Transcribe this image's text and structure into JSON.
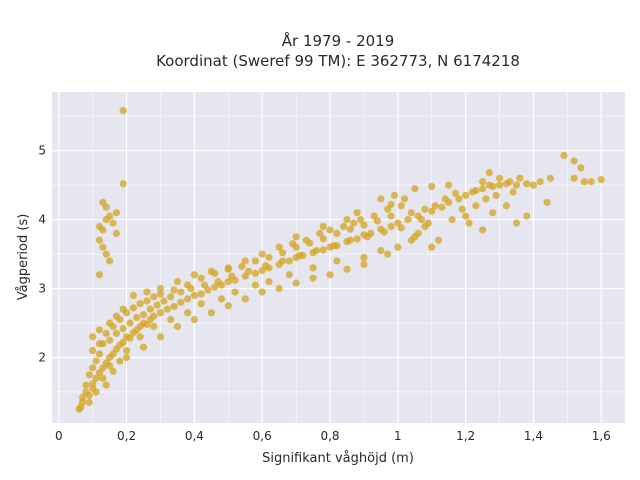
{
  "chart_data": {
    "type": "scatter",
    "title_line1": "År 1979 - 2019",
    "title_line2": "Koordinat (Sweref 99 TM): E 362773, N 6174218",
    "xlabel": "Signifikant våghöjd (m)",
    "ylabel": "Vågperiod (s)",
    "xlim": [
      -0.02,
      1.67
    ],
    "ylim": [
      1.05,
      5.85
    ],
    "x_ticks": [
      "0",
      "0,2",
      "0,4",
      "0,6",
      "0,8",
      "1",
      "1,2",
      "1,4",
      "1,6"
    ],
    "x_tick_values": [
      0,
      0.2,
      0.4,
      0.6,
      0.8,
      1.0,
      1.2,
      1.4,
      1.6
    ],
    "y_ticks": [
      "2",
      "3",
      "4",
      "5"
    ],
    "y_tick_values": [
      2,
      3,
      4,
      5
    ],
    "grid": true,
    "colors": {
      "marker": "#d4a31e",
      "plot_bg": "#e5e6ef",
      "grid": "#ffffff"
    },
    "series": [
      {
        "points": [
          [
            0.06,
            1.25
          ],
          [
            0.065,
            1.28
          ],
          [
            0.07,
            1.42
          ],
          [
            0.08,
            1.5
          ],
          [
            0.09,
            1.35
          ],
          [
            0.1,
            1.55
          ],
          [
            0.1,
            1.62
          ],
          [
            0.11,
            1.7
          ],
          [
            0.12,
            1.78
          ],
          [
            0.13,
            1.85
          ],
          [
            0.13,
            1.7
          ],
          [
            0.14,
            1.92
          ],
          [
            0.15,
            2.0
          ],
          [
            0.15,
            1.88
          ],
          [
            0.16,
            2.05
          ],
          [
            0.17,
            2.12
          ],
          [
            0.18,
            2.18
          ],
          [
            0.19,
            2.22
          ],
          [
            0.2,
            2.3
          ],
          [
            0.21,
            2.28
          ],
          [
            0.22,
            2.36
          ],
          [
            0.23,
            2.4
          ],
          [
            0.24,
            2.45
          ],
          [
            0.25,
            2.5
          ],
          [
            0.26,
            2.48
          ],
          [
            0.27,
            2.55
          ],
          [
            0.28,
            2.6
          ],
          [
            0.3,
            2.65
          ],
          [
            0.32,
            2.7
          ],
          [
            0.34,
            2.74
          ],
          [
            0.36,
            2.8
          ],
          [
            0.38,
            2.85
          ],
          [
            0.4,
            2.9
          ],
          [
            0.42,
            2.92
          ],
          [
            0.44,
            2.98
          ],
          [
            0.46,
            3.02
          ],
          [
            0.48,
            3.05
          ],
          [
            0.5,
            3.1
          ],
          [
            0.52,
            3.12
          ],
          [
            0.55,
            3.18
          ],
          [
            0.58,
            3.22
          ],
          [
            0.6,
            3.26
          ],
          [
            0.62,
            3.3
          ],
          [
            0.65,
            3.35
          ],
          [
            0.68,
            3.4
          ],
          [
            0.7,
            3.45
          ],
          [
            0.72,
            3.48
          ],
          [
            0.75,
            3.52
          ],
          [
            0.78,
            3.56
          ],
          [
            0.8,
            3.6
          ],
          [
            0.82,
            3.62
          ],
          [
            0.85,
            3.68
          ],
          [
            0.88,
            3.72
          ],
          [
            0.9,
            3.78
          ],
          [
            0.92,
            3.8
          ],
          [
            0.95,
            3.86
          ],
          [
            0.98,
            3.9
          ],
          [
            1.0,
            3.95
          ],
          [
            1.03,
            4.0
          ],
          [
            1.06,
            4.05
          ],
          [
            1.1,
            4.12
          ],
          [
            1.13,
            4.18
          ],
          [
            1.15,
            4.25
          ],
          [
            1.18,
            4.3
          ],
          [
            1.2,
            4.35
          ],
          [
            1.22,
            4.4
          ],
          [
            1.25,
            4.45
          ],
          [
            1.28,
            4.48
          ],
          [
            1.3,
            4.5
          ],
          [
            1.32,
            4.52
          ],
          [
            1.35,
            4.5
          ],
          [
            1.38,
            4.52
          ],
          [
            1.4,
            4.5
          ],
          [
            1.42,
            4.55
          ],
          [
            1.45,
            4.6
          ],
          [
            1.44,
            4.25
          ],
          [
            1.38,
            4.05
          ],
          [
            1.35,
            3.95
          ],
          [
            1.25,
            3.85
          ],
          [
            1.28,
            4.1
          ],
          [
            1.32,
            4.2
          ],
          [
            1.2,
            4.05
          ],
          [
            1.12,
            3.7
          ],
          [
            1.1,
            3.6
          ],
          [
            1.08,
            3.9
          ],
          [
            1.05,
            3.75
          ],
          [
            1.49,
            4.93
          ],
          [
            1.52,
            4.85
          ],
          [
            1.54,
            4.75
          ],
          [
            1.52,
            4.6
          ],
          [
            1.55,
            4.55
          ],
          [
            1.57,
            4.55
          ],
          [
            1.6,
            4.58
          ],
          [
            1.3,
            4.6
          ],
          [
            1.27,
            4.68
          ],
          [
            1.25,
            4.55
          ],
          [
            1.15,
            4.5
          ],
          [
            1.1,
            4.48
          ],
          [
            1.05,
            4.45
          ],
          [
            1.02,
            4.3
          ],
          [
            0.98,
            4.22
          ],
          [
            1.0,
            3.6
          ],
          [
            0.97,
            3.5
          ],
          [
            0.95,
            3.55
          ],
          [
            0.9,
            3.45
          ],
          [
            0.95,
            4.3
          ],
          [
            0.88,
            4.1
          ],
          [
            0.85,
            4.0
          ],
          [
            0.82,
            3.4
          ],
          [
            0.78,
            3.9
          ],
          [
            0.75,
            3.3
          ],
          [
            0.7,
            3.75
          ],
          [
            0.68,
            3.2
          ],
          [
            0.65,
            3.6
          ],
          [
            0.62,
            3.1
          ],
          [
            0.6,
            3.5
          ],
          [
            0.58,
            3.05
          ],
          [
            0.55,
            3.4
          ],
          [
            0.52,
            2.95
          ],
          [
            0.5,
            3.3
          ],
          [
            0.48,
            2.85
          ],
          [
            0.45,
            3.25
          ],
          [
            0.42,
            2.78
          ],
          [
            0.4,
            3.2
          ],
          [
            0.38,
            2.65
          ],
          [
            0.35,
            3.1
          ],
          [
            0.33,
            2.55
          ],
          [
            0.3,
            3.0
          ],
          [
            0.28,
            2.45
          ],
          [
            0.26,
            2.95
          ],
          [
            0.24,
            2.3
          ],
          [
            0.22,
            2.9
          ],
          [
            0.2,
            2.1
          ],
          [
            0.19,
            2.7
          ],
          [
            0.18,
            1.95
          ],
          [
            0.17,
            2.6
          ],
          [
            0.16,
            1.8
          ],
          [
            0.15,
            2.5
          ],
          [
            0.14,
            1.6
          ],
          [
            0.12,
            2.4
          ],
          [
            0.11,
            1.5
          ],
          [
            0.1,
            2.3
          ],
          [
            0.09,
            1.45
          ],
          [
            0.1,
            2.1
          ],
          [
            0.12,
            2.2
          ],
          [
            0.14,
            2.35
          ],
          [
            0.16,
            2.45
          ],
          [
            0.18,
            2.55
          ],
          [
            0.2,
            2.65
          ],
          [
            0.22,
            2.72
          ],
          [
            0.24,
            2.78
          ],
          [
            0.26,
            2.82
          ],
          [
            0.28,
            2.88
          ],
          [
            0.3,
            2.92
          ],
          [
            0.34,
            2.98
          ],
          [
            0.38,
            3.05
          ],
          [
            0.42,
            3.15
          ],
          [
            0.46,
            3.22
          ],
          [
            0.5,
            3.28
          ],
          [
            0.54,
            3.32
          ],
          [
            0.58,
            3.4
          ],
          [
            0.62,
            3.45
          ],
          [
            0.66,
            3.52
          ],
          [
            0.7,
            3.6
          ],
          [
            0.74,
            3.66
          ],
          [
            0.78,
            3.72
          ],
          [
            0.82,
            3.8
          ],
          [
            0.86,
            3.86
          ],
          [
            0.9,
            3.92
          ],
          [
            0.94,
            3.98
          ],
          [
            0.98,
            4.05
          ],
          [
            0.2,
            2.0
          ],
          [
            0.25,
            2.15
          ],
          [
            0.3,
            2.3
          ],
          [
            0.35,
            2.45
          ],
          [
            0.4,
            2.55
          ],
          [
            0.45,
            2.65
          ],
          [
            0.5,
            2.75
          ],
          [
            0.55,
            2.85
          ],
          [
            0.6,
            2.95
          ],
          [
            0.65,
            3.0
          ],
          [
            0.7,
            3.08
          ],
          [
            0.75,
            3.15
          ],
          [
            0.8,
            3.2
          ],
          [
            0.85,
            3.28
          ],
          [
            0.9,
            3.35
          ],
          [
            0.12,
            3.2
          ],
          [
            0.12,
            3.7
          ],
          [
            0.12,
            3.9
          ],
          [
            0.13,
            3.85
          ],
          [
            0.13,
            3.6
          ],
          [
            0.14,
            4.0
          ],
          [
            0.14,
            3.5
          ],
          [
            0.15,
            3.4
          ],
          [
            0.13,
            4.25
          ],
          [
            0.14,
            4.18
          ],
          [
            0.15,
            4.05
          ],
          [
            0.17,
            4.1
          ],
          [
            0.17,
            3.8
          ],
          [
            0.16,
            3.95
          ],
          [
            0.19,
            4.52
          ],
          [
            0.19,
            5.58
          ],
          [
            0.07,
            1.35
          ],
          [
            0.08,
            1.6
          ],
          [
            0.09,
            1.75
          ],
          [
            0.1,
            1.85
          ],
          [
            0.11,
            1.95
          ],
          [
            0.12,
            2.05
          ],
          [
            0.13,
            2.2
          ],
          [
            0.15,
            2.25
          ],
          [
            0.17,
            2.35
          ],
          [
            0.19,
            2.42
          ],
          [
            0.21,
            2.5
          ],
          [
            0.23,
            2.58
          ],
          [
            0.25,
            2.62
          ],
          [
            0.27,
            2.7
          ],
          [
            0.29,
            2.76
          ],
          [
            0.31,
            2.82
          ],
          [
            0.33,
            2.88
          ],
          [
            0.36,
            2.95
          ],
          [
            0.39,
            3.0
          ],
          [
            0.43,
            3.05
          ],
          [
            0.47,
            3.1
          ],
          [
            0.51,
            3.18
          ],
          [
            0.56,
            3.25
          ],
          [
            0.61,
            3.33
          ],
          [
            0.66,
            3.4
          ],
          [
            0.71,
            3.48
          ],
          [
            0.76,
            3.55
          ],
          [
            0.81,
            3.62
          ],
          [
            0.86,
            3.7
          ],
          [
            0.91,
            3.75
          ],
          [
            0.96,
            3.82
          ],
          [
            1.01,
            3.88
          ],
          [
            1.04,
            4.1
          ],
          [
            1.08,
            4.15
          ],
          [
            1.11,
            4.2
          ],
          [
            1.14,
            4.3
          ],
          [
            1.17,
            4.38
          ],
          [
            1.23,
            4.42
          ],
          [
            1.27,
            4.5
          ],
          [
            1.33,
            4.55
          ],
          [
            1.36,
            4.6
          ],
          [
            1.16,
            4.0
          ],
          [
            1.19,
            4.15
          ],
          [
            1.21,
            3.95
          ],
          [
            1.23,
            4.2
          ],
          [
            1.26,
            4.3
          ],
          [
            1.29,
            4.35
          ],
          [
            1.34,
            4.4
          ],
          [
            1.09,
            3.95
          ],
          [
            1.07,
            4.0
          ],
          [
            1.06,
            3.8
          ],
          [
            1.04,
            3.7
          ],
          [
            1.01,
            4.2
          ],
          [
            0.99,
            4.35
          ],
          [
            0.97,
            4.15
          ],
          [
            0.93,
            4.05
          ],
          [
            0.89,
            4.0
          ],
          [
            0.87,
            3.95
          ],
          [
            0.84,
            3.9
          ],
          [
            0.8,
            3.85
          ],
          [
            0.77,
            3.8
          ],
          [
            0.73,
            3.7
          ],
          [
            0.69,
            3.65
          ]
        ]
      }
    ]
  }
}
